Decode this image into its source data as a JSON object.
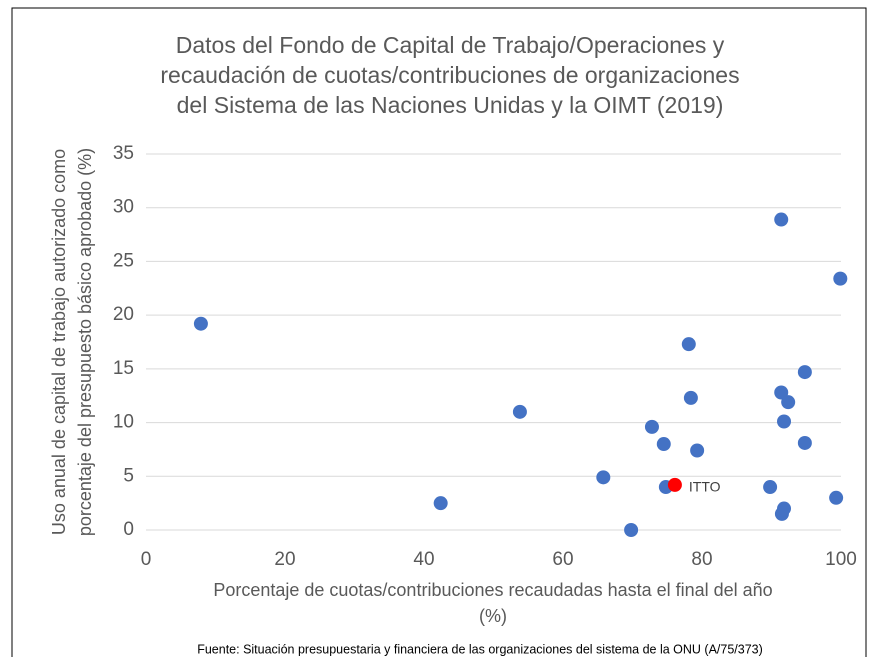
{
  "chart_data": {
    "type": "scatter",
    "title": [
      "Datos del Fondo de Capital de Trabajo/Operaciones y",
      "recaudación de cuotas/contribuciones de organizaciones",
      "del Sistema de las Naciones Unidas y la OIMT (2019)"
    ],
    "x_label": [
      "Porcentaje de cuotas/contribuciones recaudadas hasta el final del año",
      "(%)"
    ],
    "y_label": [
      "Uso anual de capital de trabajo autorizado como",
      "porcentaje del presupuesto básico aprobado (%)"
    ],
    "source": "Fuente: Situación presupuestaria y financiera de las organizaciones del sistema de la ONU (A/75/373)",
    "xlim": [
      0,
      100
    ],
    "xticks": [
      0,
      20,
      40,
      60,
      80,
      100
    ],
    "ylim": [
      0,
      35
    ],
    "yticks": [
      0,
      5,
      10,
      15,
      20,
      25,
      30,
      35
    ],
    "grid": true,
    "series": [
      {
        "color": "#4472c4",
        "x": [
          7.9,
          42.4,
          53.8,
          65.8,
          69.8,
          72.8,
          74.5,
          74.8,
          78.1,
          78.4,
          79.3,
          89.8,
          91.4,
          91.4,
          91.8,
          92.4,
          91.5,
          91.8,
          94.8,
          94.8,
          99.3,
          99.9
        ],
        "values": [
          19.2,
          2.5,
          11.0,
          4.9,
          0,
          9.6,
          8.0,
          4.0,
          17.3,
          12.3,
          7.4,
          4.0,
          28.9,
          12.8,
          10.1,
          11.9,
          1.5,
          2.0,
          14.7,
          8.1,
          3.0,
          23.4
        ]
      },
      {
        "name": "ITTO",
        "color": "#ff0000",
        "x": [
          76.1
        ],
        "values": [
          4.2
        ]
      }
    ]
  }
}
